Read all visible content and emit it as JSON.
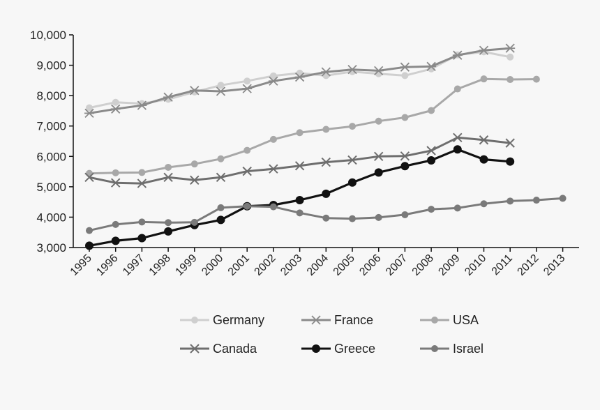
{
  "chart_data": {
    "type": "line",
    "x": [
      "1995",
      "1996",
      "1997",
      "1998",
      "1999",
      "2000",
      "2001",
      "2002",
      "2003",
      "2004",
      "2005",
      "2006",
      "2007",
      "2008",
      "2009",
      "2010",
      "2011",
      "2012",
      "2013"
    ],
    "ylim": [
      3000,
      10000
    ],
    "y_ticks": [
      {
        "value": 3000,
        "label": "3,000"
      },
      {
        "value": 4000,
        "label": "4,000"
      },
      {
        "value": 5000,
        "label": "5,000"
      },
      {
        "value": 6000,
        "label": "6,000"
      },
      {
        "value": 7000,
        "label": "7,000"
      },
      {
        "value": 8000,
        "label": "8,000"
      },
      {
        "value": 9000,
        "label": "9,000"
      },
      {
        "value": 10000,
        "label": "10,000"
      }
    ],
    "grid": false,
    "legend_position": "bottom",
    "series": [
      {
        "name": "Germany",
        "color": "#cfcfcf",
        "marker": "circle",
        "values": [
          7600,
          7780,
          7740,
          7880,
          8120,
          8340,
          8480,
          8650,
          8740,
          8660,
          8790,
          8720,
          8660,
          8880,
          9340,
          9440,
          9270,
          null,
          null
        ]
      },
      {
        "name": "France",
        "color": "#8a8a8a",
        "marker": "asterisk",
        "values": [
          null,
          null,
          null,
          7950,
          8170,
          8140,
          8230,
          8480,
          8610,
          8780,
          8860,
          8820,
          8940,
          8960,
          9330,
          9490,
          9560,
          null,
          null
        ]
      },
      {
        "name": "USA",
        "color": "#a8a8a8",
        "marker": "circle",
        "values": [
          5440,
          5460,
          5470,
          5640,
          5750,
          5920,
          6200,
          6560,
          6780,
          6890,
          6990,
          7160,
          7280,
          7510,
          8220,
          8550,
          8530,
          8540,
          null
        ]
      },
      {
        "name": "Canada",
        "color": "#6e6e6e",
        "marker": "x",
        "values": [
          5310,
          5130,
          5110,
          5310,
          5220,
          5310,
          5510,
          5590,
          5690,
          5810,
          5880,
          6000,
          6010,
          6190,
          6620,
          6540,
          6440,
          null,
          null
        ]
      },
      {
        "name": "Greece",
        "color": "#111111",
        "marker": "circle",
        "values": [
          3060,
          3220,
          3310,
          3530,
          3740,
          3910,
          4360,
          4400,
          4560,
          4770,
          5140,
          5470,
          5680,
          5870,
          6230,
          5900,
          5830,
          null,
          null
        ]
      },
      {
        "name": "Israel",
        "color": "#7a7a7a",
        "marker": "circle",
        "values": [
          3560,
          3760,
          3840,
          3820,
          3830,
          4310,
          4360,
          4340,
          4140,
          3970,
          3950,
          3990,
          4080,
          4260,
          4300,
          4440,
          4530,
          4560,
          4620
        ]
      }
    ],
    "france_pre1998": {
      "name": "France",
      "values": [
        7420,
        7560,
        7680
      ]
    }
  }
}
